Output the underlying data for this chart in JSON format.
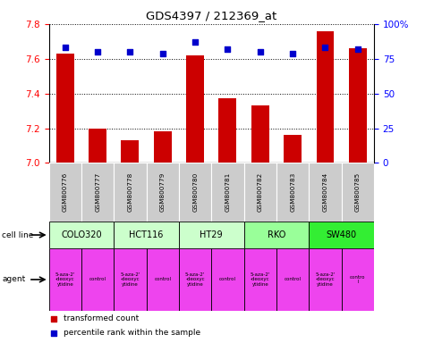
{
  "title": "GDS4397 / 212369_at",
  "samples": [
    "GSM800776",
    "GSM800777",
    "GSM800778",
    "GSM800779",
    "GSM800780",
    "GSM800781",
    "GSM800782",
    "GSM800783",
    "GSM800784",
    "GSM800785"
  ],
  "bar_values": [
    7.63,
    7.2,
    7.13,
    7.18,
    7.62,
    7.37,
    7.33,
    7.16,
    7.76,
    7.66
  ],
  "dot_values": [
    83,
    80,
    80,
    79,
    87,
    82,
    80,
    79,
    83,
    82
  ],
  "ylim_left": [
    7.0,
    7.8
  ],
  "ylim_right": [
    0,
    100
  ],
  "yticks_left": [
    7.0,
    7.2,
    7.4,
    7.6,
    7.8
  ],
  "yticks_right": [
    0,
    25,
    50,
    75,
    100
  ],
  "bar_color": "#cc0000",
  "dot_color": "#0000cc",
  "cell_lines": [
    {
      "label": "COLO320",
      "start": 0,
      "end": 2,
      "color": "#ccffcc"
    },
    {
      "label": "HCT116",
      "start": 2,
      "end": 4,
      "color": "#ccffcc"
    },
    {
      "label": "HT29",
      "start": 4,
      "end": 6,
      "color": "#ccffcc"
    },
    {
      "label": "RKO",
      "start": 6,
      "end": 8,
      "color": "#99ff99"
    },
    {
      "label": "SW480",
      "start": 8,
      "end": 10,
      "color": "#33ee33"
    }
  ],
  "agents": [
    {
      "label": "5-aza-2'\n-deoxyc\nytidine",
      "start": 0,
      "end": 1,
      "color": "#ee44ee"
    },
    {
      "label": "control",
      "start": 1,
      "end": 2,
      "color": "#ee44ee"
    },
    {
      "label": "5-aza-2'\n-deoxyc\nytidine",
      "start": 2,
      "end": 3,
      "color": "#ee44ee"
    },
    {
      "label": "control",
      "start": 3,
      "end": 4,
      "color": "#ee44ee"
    },
    {
      "label": "5-aza-2'\n-deoxyc\nytidine",
      "start": 4,
      "end": 5,
      "color": "#ee44ee"
    },
    {
      "label": "control",
      "start": 5,
      "end": 6,
      "color": "#ee44ee"
    },
    {
      "label": "5-aza-2'\n-deoxyc\nytidine",
      "start": 6,
      "end": 7,
      "color": "#ee44ee"
    },
    {
      "label": "control",
      "start": 7,
      "end": 8,
      "color": "#ee44ee"
    },
    {
      "label": "5-aza-2'\n-deoxyc\nytidine",
      "start": 8,
      "end": 9,
      "color": "#ee44ee"
    },
    {
      "label": "contro\nl",
      "start": 9,
      "end": 10,
      "color": "#ee44ee"
    }
  ],
  "legend_items": [
    {
      "label": "transformed count",
      "color": "#cc0000"
    },
    {
      "label": "percentile rank within the sample",
      "color": "#0000cc"
    }
  ],
  "sample_label_bg": "#cccccc",
  "fig_width": 4.75,
  "fig_height": 3.84,
  "dpi": 100
}
